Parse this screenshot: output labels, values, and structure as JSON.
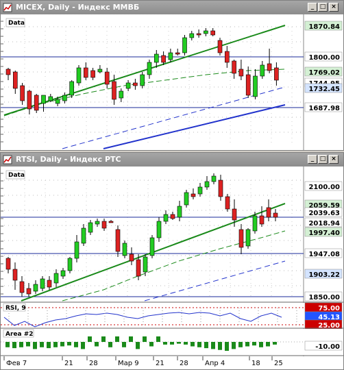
{
  "micex_window": {
    "title": "MICEX, Daily - Индекс ММВБ",
    "data_label": "Data",
    "price_labels": [
      {
        "text": "1870.84",
        "bg": "#d4f0d4",
        "fg": "#000"
      },
      {
        "text": "1800.00",
        "bg": "#ffffff",
        "fg": "#000"
      },
      {
        "text": "1769.02",
        "bg": "#d4f0d4",
        "fg": "#000"
      },
      {
        "text": "1744.95",
        "bg": "#ffffff",
        "fg": "#000"
      },
      {
        "text": "1732.45",
        "bg": "#d4e4ff",
        "fg": "#000"
      },
      {
        "text": "1687.98",
        "bg": "#ffffff",
        "fg": "#000"
      }
    ]
  },
  "rtsi_window": {
    "title": "RTSI, Daily - Индекс РТС",
    "data_label": "Data",
    "price_labels": [
      {
        "text": "2100.00",
        "bg": "#ffffff",
        "fg": "#000"
      },
      {
        "text": "2059.59",
        "bg": "#d4f0d4",
        "fg": "#000"
      },
      {
        "text": "2039.63",
        "bg": "#ffffff",
        "fg": "#000"
      },
      {
        "text": "2018.94",
        "bg": "#ffffff",
        "fg": "#000"
      },
      {
        "text": "1997.40",
        "bg": "#d4f0d4",
        "fg": "#000"
      },
      {
        "text": "1947.08",
        "bg": "#ffffff",
        "fg": "#000"
      },
      {
        "text": "1903.22",
        "bg": "#d4e4ff",
        "fg": "#000"
      },
      {
        "text": "1850.00",
        "bg": "#ffffff",
        "fg": "#000"
      }
    ],
    "rsi_label": "RSI, 9",
    "rsi_values": [
      {
        "text": "75.00",
        "bg": "#cc0000",
        "fg": "#fff"
      },
      {
        "text": "45.13",
        "bg": "#2255ff",
        "fg": "#fff"
      },
      {
        "text": "25.00",
        "bg": "#cc0000",
        "fg": "#fff"
      }
    ],
    "area_label": "Area #2",
    "area_values": [
      {
        "text": "-10.00",
        "bg": "#ffffff",
        "fg": "#000"
      }
    ],
    "date_axis": [
      "Фев 7",
      "21",
      "28",
      "Мар 9",
      "21",
      "28",
      "Апр 4",
      "18",
      "25"
    ]
  },
  "title_buttons": {
    "minimize": "_",
    "restore": "□",
    "close": "×"
  },
  "colors": {
    "up": "#22cc22",
    "down": "#dd2222",
    "trend": "#1a8a1a",
    "channel": "#2233cc",
    "hline": "#1a2a9a"
  }
}
